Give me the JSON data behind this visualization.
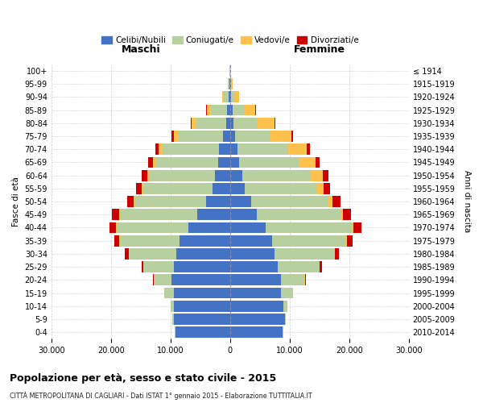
{
  "age_groups": [
    "0-4",
    "5-9",
    "10-14",
    "15-19",
    "20-24",
    "25-29",
    "30-34",
    "35-39",
    "40-44",
    "45-49",
    "50-54",
    "55-59",
    "60-64",
    "65-69",
    "70-74",
    "75-79",
    "80-84",
    "85-89",
    "90-94",
    "95-99",
    "100+"
  ],
  "birth_years": [
    "2010-2014",
    "2005-2009",
    "2000-2004",
    "1995-1999",
    "1990-1994",
    "1985-1989",
    "1980-1984",
    "1975-1979",
    "1970-1974",
    "1965-1969",
    "1960-1964",
    "1955-1959",
    "1950-1954",
    "1945-1949",
    "1940-1944",
    "1935-1939",
    "1930-1934",
    "1925-1929",
    "1920-1924",
    "1915-1919",
    "≤ 1914"
  ],
  "males": {
    "celibi": [
      9200,
      9500,
      9500,
      9500,
      9800,
      9500,
      9000,
      8500,
      7000,
      5500,
      4000,
      3000,
      2500,
      2000,
      1800,
      1200,
      700,
      500,
      200,
      80,
      30
    ],
    "coniugati": [
      100,
      200,
      500,
      1500,
      3000,
      5000,
      8000,
      10000,
      12000,
      13000,
      12000,
      11500,
      11000,
      10500,
      9500,
      7500,
      5000,
      2800,
      800,
      200,
      20
    ],
    "vedovi": [
      2,
      3,
      5,
      10,
      20,
      30,
      50,
      80,
      100,
      150,
      200,
      300,
      400,
      500,
      700,
      800,
      800,
      600,
      300,
      100,
      5
    ],
    "divorziati": [
      5,
      10,
      20,
      50,
      100,
      300,
      600,
      900,
      1100,
      1200,
      1100,
      1000,
      900,
      800,
      600,
      300,
      150,
      100,
      50,
      20,
      2
    ]
  },
  "females": {
    "nubili": [
      8800,
      9200,
      9000,
      8500,
      8500,
      8000,
      7500,
      7000,
      6000,
      4500,
      3500,
      2500,
      2000,
      1500,
      1200,
      800,
      500,
      400,
      200,
      80,
      30
    ],
    "coniugate": [
      100,
      200,
      600,
      2000,
      4000,
      7000,
      10000,
      12500,
      14500,
      14000,
      13000,
      12000,
      11500,
      10000,
      8500,
      6000,
      4000,
      2000,
      600,
      150,
      20
    ],
    "vedove": [
      2,
      3,
      5,
      15,
      30,
      50,
      80,
      120,
      200,
      400,
      700,
      1200,
      2000,
      2800,
      3200,
      3500,
      3000,
      1800,
      700,
      200,
      10
    ],
    "divorziate": [
      5,
      10,
      20,
      60,
      150,
      400,
      700,
      1000,
      1300,
      1400,
      1300,
      1100,
      1000,
      700,
      500,
      250,
      150,
      100,
      50,
      20,
      2
    ]
  },
  "colors": {
    "celibi": "#4472c4",
    "coniugati": "#b8cfa0",
    "vedovi": "#ffc04c",
    "divorziati": "#cc0000"
  },
  "xlim": 30000,
  "xticks": [
    -30000,
    -20000,
    -10000,
    0,
    10000,
    20000,
    30000
  ],
  "title": "Popolazione per età, sesso e stato civile - 2015",
  "subtitle": "CITTÀ METROPOLITANA DI CAGLIARI - Dati ISTAT 1° gennaio 2015 - Elaborazione TUTTITALIA.IT",
  "label_maschi": "Maschi",
  "label_femmine": "Femmine",
  "ylabel_left": "Fasce di età",
  "ylabel_right": "Anni di nascita",
  "legend_labels": [
    "Celibi/Nubili",
    "Coniugati/e",
    "Vedovi/e",
    "Divorziati/e"
  ],
  "bg_color": "#ffffff",
  "grid_color": "#cccccc"
}
